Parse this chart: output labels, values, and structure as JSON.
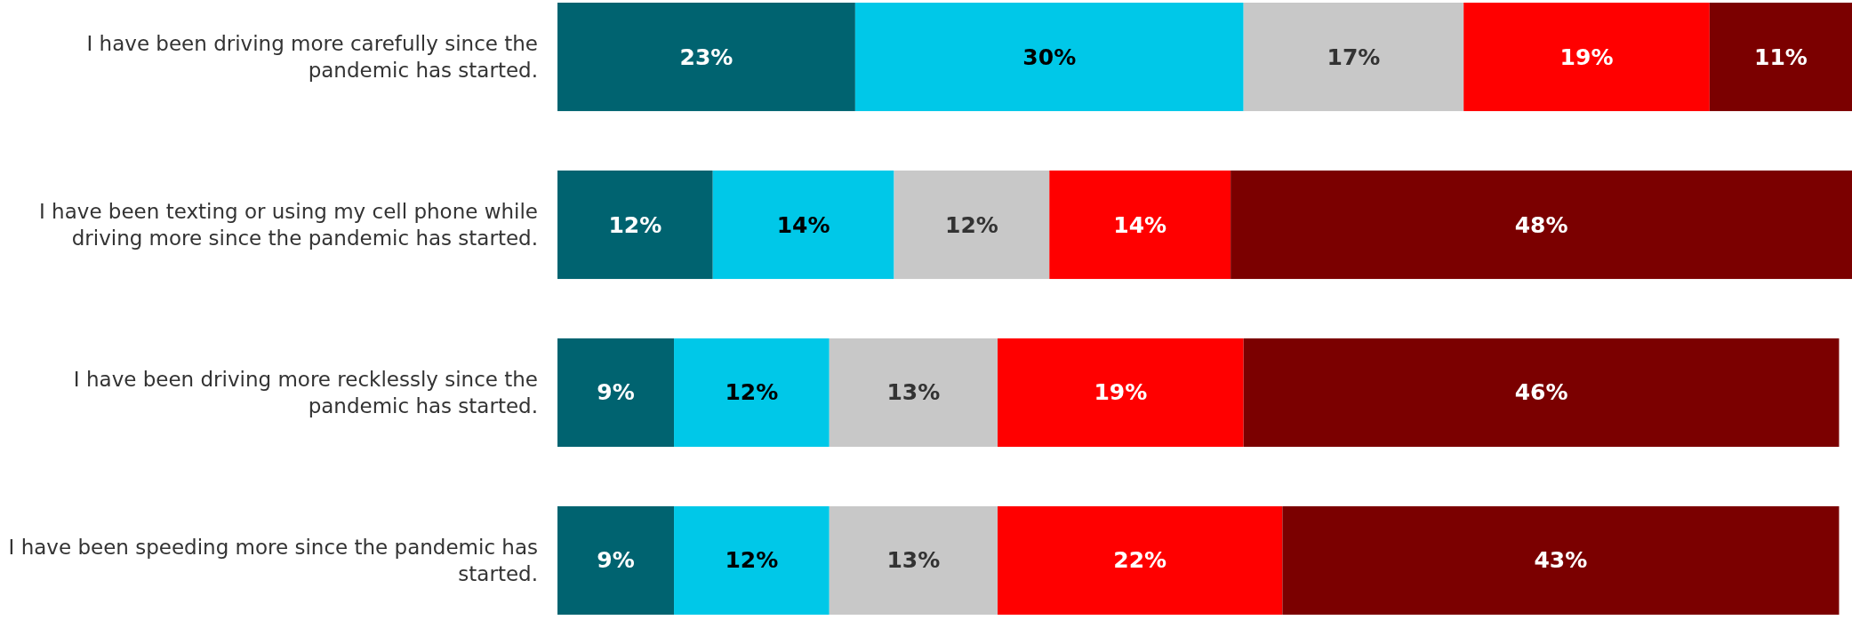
{
  "chart_data": {
    "type": "bar",
    "orientation": "horizontal",
    "stacked": true,
    "categories": [
      "I have been driving more carefully since the pandemic has started.",
      "I have been texting or using my cell phone while driving more since the pandemic has started.",
      "I have been driving more recklessly since the pandemic has started.",
      "I have been speeding more since the pandemic has started."
    ],
    "series": [
      {
        "color": "#006370",
        "values": [
          23,
          12,
          9,
          9
        ],
        "value_labels": [
          "23%",
          "12%",
          "9%",
          "9%"
        ]
      },
      {
        "color": "#00c8e8",
        "values": [
          30,
          14,
          12,
          12
        ],
        "value_labels": [
          "30%",
          "14%",
          "12%",
          "12%"
        ]
      },
      {
        "color": "#c8c8c8",
        "values": [
          17,
          12,
          13,
          13
        ],
        "value_labels": [
          "17%",
          "12%",
          "13%",
          "13%"
        ]
      },
      {
        "color": "#ff0000",
        "values": [
          19,
          14,
          19,
          22
        ],
        "value_labels": [
          "19%",
          "14%",
          "19%",
          "22%"
        ]
      },
      {
        "color": "#7b0000",
        "values": [
          11,
          48,
          46,
          43
        ],
        "value_labels": [
          "11%",
          "48%",
          "46%",
          "43%"
        ]
      }
    ],
    "xlim": [
      0,
      100
    ],
    "tick_labels": "y"
  }
}
